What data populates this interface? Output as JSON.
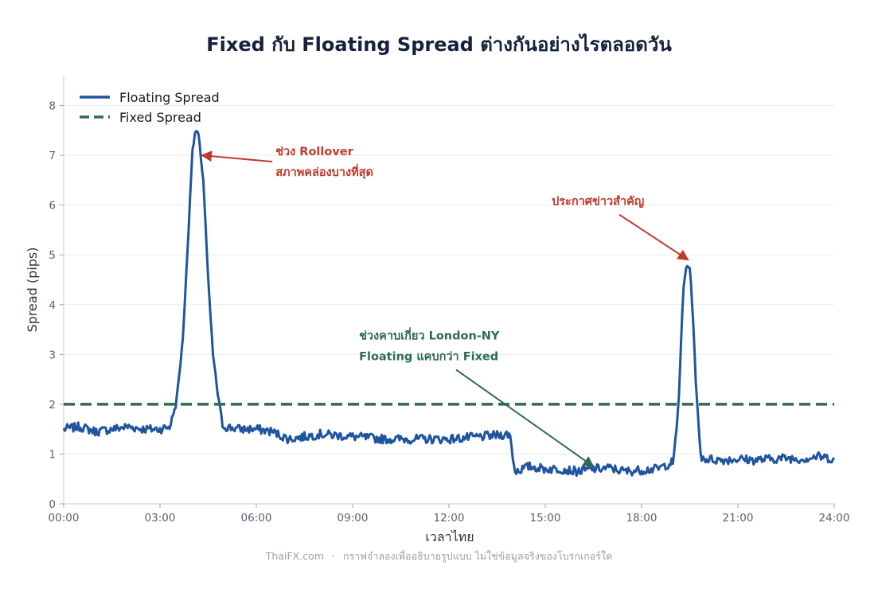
{
  "chart_data": {
    "type": "line",
    "title": "Fixed กับ Floating Spread ต่างกันอย่างไรตลอดวัน",
    "xlabel": "เวลาไทย",
    "ylabel": "Spread (pips)",
    "xlim": [
      0,
      24
    ],
    "ylim": [
      0,
      8.6
    ],
    "x_ticks": [
      "00:00",
      "03:00",
      "06:00",
      "09:00",
      "12:00",
      "15:00",
      "18:00",
      "21:00",
      "24:00"
    ],
    "y_ticks": [
      "0",
      "1",
      "2",
      "3",
      "4",
      "5",
      "6",
      "7",
      "8"
    ],
    "grid": "horizontal",
    "legend_position": "top-left",
    "series": [
      {
        "name": "Floating Spread",
        "color": "#1f55a0",
        "style": "solid",
        "x": [
          0,
          0.5,
          1.0,
          1.5,
          2.0,
          2.5,
          3.0,
          3.3,
          3.5,
          3.7,
          3.85,
          4.0,
          4.1,
          4.2,
          4.35,
          4.5,
          4.65,
          4.8,
          4.95,
          5.0,
          5.5,
          6.0,
          6.5,
          7.0,
          7.5,
          8.0,
          9.0,
          10.0,
          11.0,
          12.0,
          13.0,
          13.9,
          14.05,
          14.5,
          15.0,
          15.5,
          16.0,
          16.5,
          17.0,
          17.5,
          18.0,
          18.5,
          19.0,
          19.15,
          19.3,
          19.4,
          19.5,
          19.6,
          19.7,
          19.8,
          19.85,
          20.0,
          20.5,
          21.0,
          21.5,
          22.0,
          22.5,
          23.0,
          23.5,
          24.0
        ],
        "y": [
          1.5,
          1.55,
          1.45,
          1.5,
          1.55,
          1.5,
          1.5,
          1.55,
          2.0,
          3.2,
          5.0,
          7.0,
          7.5,
          7.4,
          6.5,
          4.5,
          3.0,
          2.2,
          1.6,
          1.55,
          1.5,
          1.5,
          1.45,
          1.3,
          1.35,
          1.4,
          1.35,
          1.3,
          1.3,
          1.3,
          1.35,
          1.4,
          0.65,
          0.75,
          0.7,
          0.7,
          0.65,
          0.7,
          0.72,
          0.65,
          0.68,
          0.7,
          0.85,
          2.0,
          4.3,
          4.8,
          4.75,
          3.8,
          2.3,
          1.3,
          0.95,
          0.9,
          0.88,
          0.9,
          0.88,
          0.9,
          0.92,
          0.9,
          0.95,
          0.9
        ]
      },
      {
        "name": "Fixed Spread",
        "color": "#2e6b4f",
        "style": "dashed",
        "x": [
          0,
          24
        ],
        "y": [
          2,
          2
        ]
      }
    ],
    "annotations": [
      {
        "lines": [
          "ช่วง Rollover",
          "สภาพคล่องบางที่สุด"
        ],
        "color": "#c0392b",
        "text_at": [
          6.6,
          7.0
        ],
        "point_to": [
          4.3,
          7.0
        ]
      },
      {
        "lines": [
          "ประกาศข่าวสำคัญ"
        ],
        "color": "#c0392b",
        "text_at": [
          15.2,
          6.0
        ],
        "point_to": [
          19.45,
          4.9
        ]
      },
      {
        "lines": [
          "ช่วงคาบเกี่ยว London-NY",
          "Floating แคบกว่า Fixed"
        ],
        "color": "#2e6b4f",
        "text_at": [
          9.2,
          3.3
        ],
        "point_to": [
          16.5,
          0.75
        ]
      }
    ]
  },
  "footer": {
    "source": "ThaiFX.com",
    "separator": "·",
    "note": "กราฟจำลองเพื่ออธิบายรูปแบบ ไม่ใช่ข้อมูลจริงของโบรกเกอร์ใด"
  }
}
